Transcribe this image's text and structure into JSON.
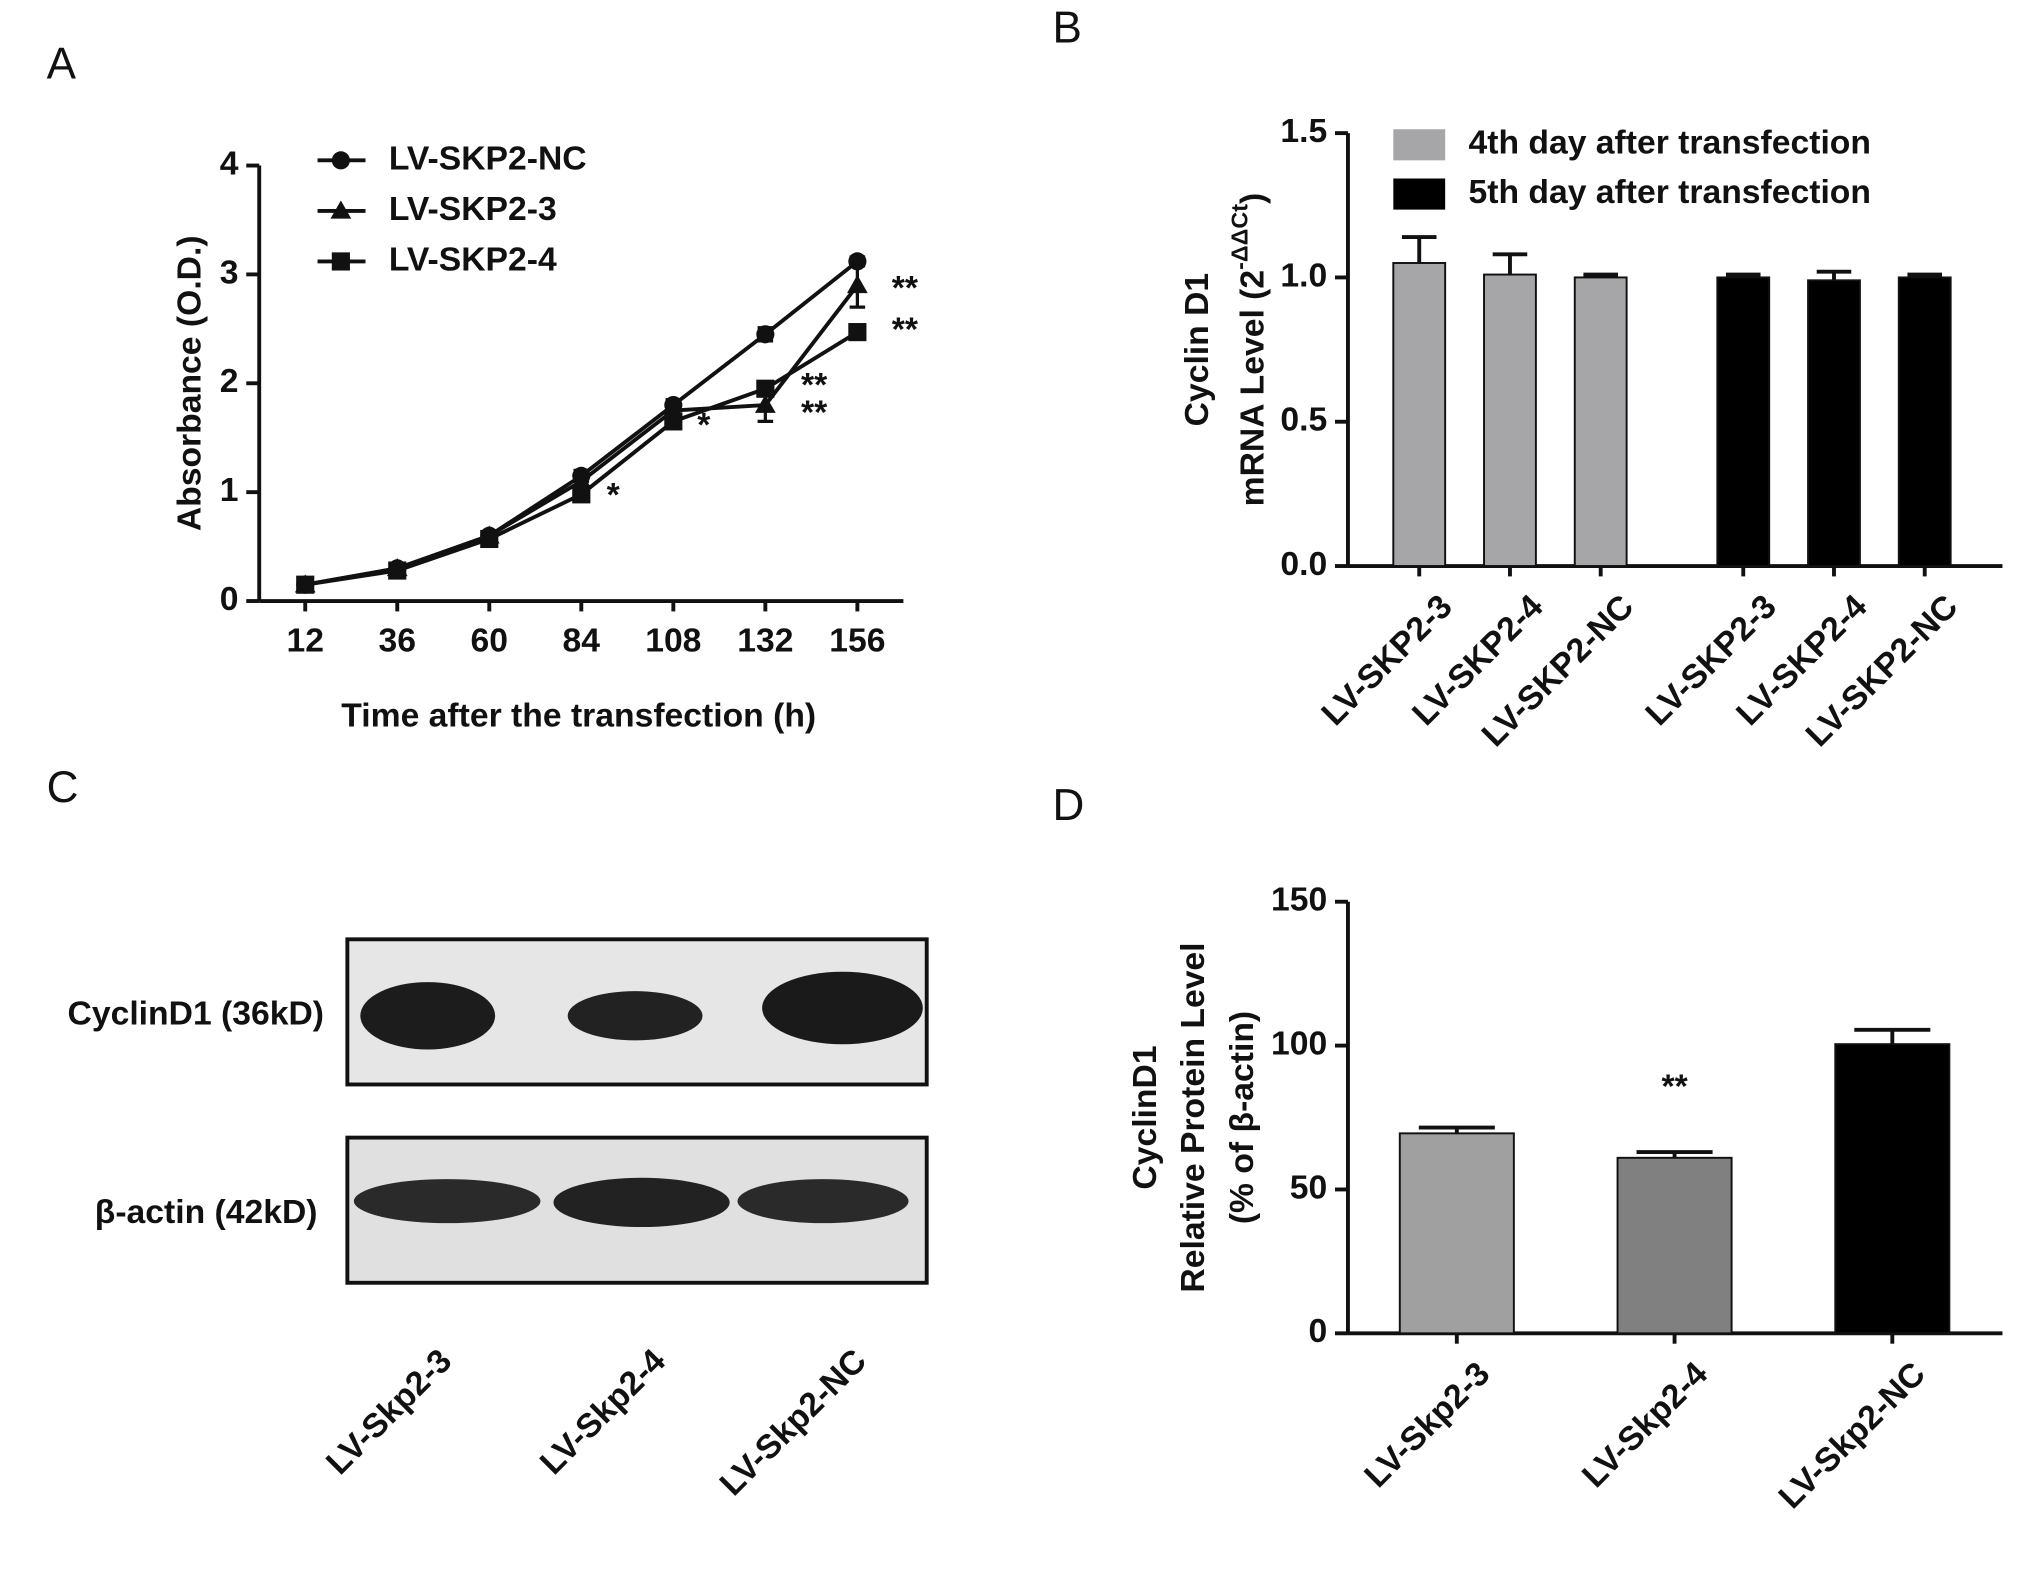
{
  "chart_data": [
    {
      "type": "line",
      "panel": "A",
      "ylabel": "Absorbance (O.D.)",
      "xlabel": "Time after the transfection (h)",
      "x": [
        12,
        36,
        60,
        84,
        108,
        132,
        156
      ],
      "xlim": [
        0,
        168
      ],
      "xticks": [
        12,
        36,
        60,
        84,
        108,
        132,
        156
      ],
      "ylim": [
        0,
        4
      ],
      "yticks": [
        0,
        1,
        2,
        3,
        4
      ],
      "legend": "upper left",
      "series": [
        {
          "name": "LV-SKP2-NC",
          "color": "#111111",
          "marker": "circle",
          "values": [
            0.15,
            0.3,
            0.6,
            1.15,
            1.8,
            2.45,
            3.12
          ],
          "errors": [
            0.02,
            0.02,
            0.03,
            0.05,
            0.05,
            0.06,
            0.04
          ]
        },
        {
          "name": "LV-SKP2-3",
          "color": "#111111",
          "marker": "triangle",
          "values": [
            0.15,
            0.3,
            0.6,
            1.1,
            1.75,
            1.8,
            2.9
          ],
          "errors": [
            0.02,
            0.02,
            0.03,
            0.05,
            0.05,
            0.15,
            0.2
          ]
        },
        {
          "name": "LV-SKP2-4",
          "color": "#111111",
          "marker": "square",
          "values": [
            0.15,
            0.28,
            0.57,
            0.98,
            1.65,
            1.95,
            2.47
          ],
          "errors": [
            0.02,
            0.02,
            0.03,
            0.04,
            0.05,
            0.06,
            0.04
          ]
        }
      ],
      "annotations": [
        "**",
        "**",
        "**",
        "**",
        "*",
        "*"
      ]
    },
    {
      "type": "bar",
      "panel": "B",
      "ylabel": [
        "Cyclin D1",
        "mRNA Level (2",
        "-ΔΔCt",
        ")"
      ],
      "categories": [
        "LV-SKP2-3",
        "LV-SKP2-4",
        "LV-SKP2-NC",
        "LV-SKP2-3",
        "LV-SKP2-4",
        "LV-SKP2-NC"
      ],
      "ylim": [
        0,
        1.5
      ],
      "yticks": [
        {
          "value": 0,
          "label": "0.0"
        },
        {
          "value": 0.5,
          "label": "0.5"
        },
        {
          "value": 1,
          "label": "1.0"
        },
        {
          "value": 1.5,
          "label": "1.5"
        }
      ],
      "legend": "upper left",
      "series": [
        {
          "name": "4th day after transfection",
          "color": "#a6a6a8",
          "values": [
            1.05,
            1.01,
            1.0,
            null,
            null,
            null
          ],
          "errors": [
            0.09,
            0.07,
            0.01,
            null,
            null,
            null
          ]
        },
        {
          "name": "5th day after transfection",
          "color": "#000000",
          "values": [
            null,
            null,
            null,
            1.0,
            0.99,
            1.0
          ],
          "errors": [
            null,
            null,
            null,
            0.01,
            0.03,
            0.01
          ]
        }
      ]
    },
    {
      "type": "bar",
      "panel": "D",
      "ylabel": [
        "CyclinD1",
        "Relative Protein Level",
        "(% of β-actin)"
      ],
      "categories": [
        "LV-Skp2-3",
        "LV-Skp2-4",
        "LV-Skp2-NC"
      ],
      "ylim": [
        0,
        150
      ],
      "yticks": [
        0,
        50,
        100,
        150
      ],
      "series": [
        {
          "colors": [
            "#a0a0a0",
            "#808080",
            "#000000"
          ],
          "values": [
            69.5,
            61,
            100.5
          ],
          "errors": [
            2,
            2,
            5
          ]
        }
      ],
      "annotations": [
        "**"
      ]
    }
  ],
  "blot": {
    "panel": "C",
    "rows": [
      "CyclinD1 (36kD)",
      "β-actin (42kD)"
    ],
    "lanes": [
      "LV-Skp2-3",
      "LV-Skp2-4",
      "LV-Skp2-NC"
    ]
  }
}
